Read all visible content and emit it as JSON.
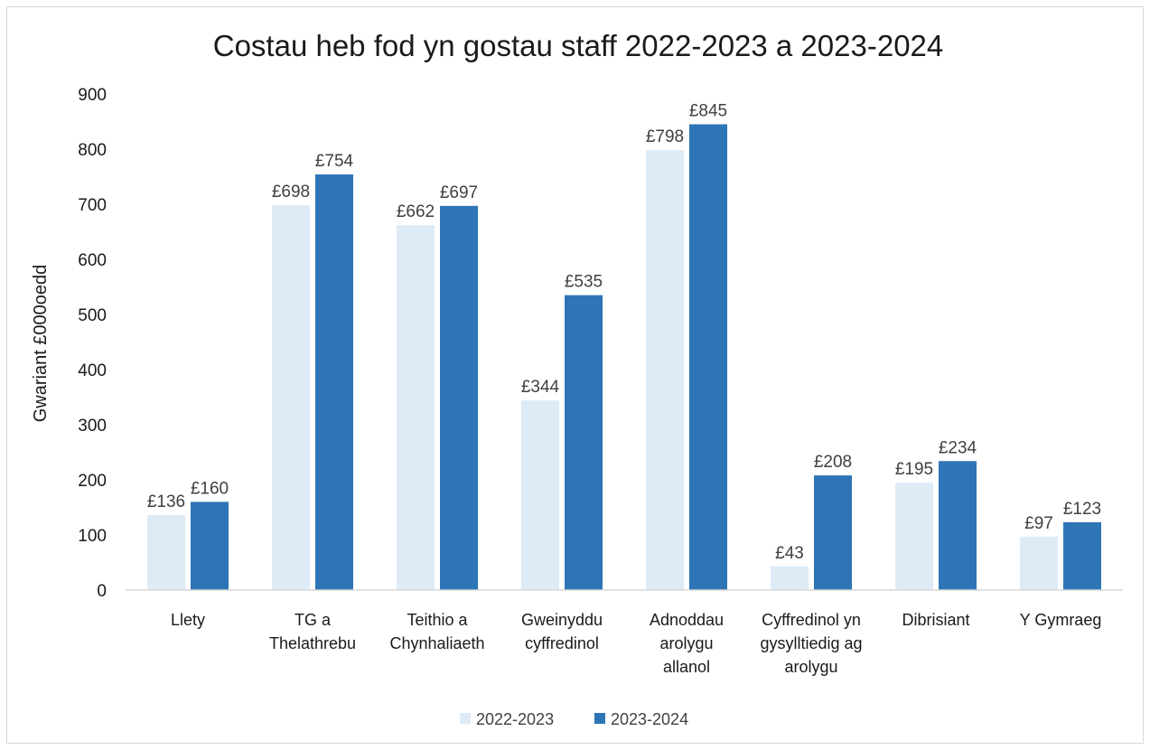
{
  "chart_data": {
    "type": "bar",
    "title": "Costau heb fod yn gostau staff 2022-2023 a 2023-2024",
    "xlabel": "",
    "ylabel": "Gwariant £000oedd",
    "ylim": [
      0,
      900
    ],
    "yticks": [
      0,
      100,
      200,
      300,
      400,
      500,
      600,
      700,
      800,
      900
    ],
    "categories": [
      [
        "Llety"
      ],
      [
        "TG a",
        "Thelathrebu"
      ],
      [
        "Teithio a",
        "Chynhaliaeth"
      ],
      [
        "Gweinyddu",
        "cyffredinol"
      ],
      [
        "Adnoddau",
        "arolygu",
        "allanol"
      ],
      [
        "Cyffredinol yn",
        "gysylltiedig ag",
        "arolygu"
      ],
      [
        "Dibrisiant"
      ],
      [
        "Y Gymraeg"
      ]
    ],
    "series": [
      {
        "name": "2022-2023",
        "color": "#ddebf7",
        "values": [
          136,
          698,
          662,
          344,
          798,
          43,
          195,
          97
        ],
        "labels": [
          "£136",
          "£698",
          "£662",
          "£344",
          "£798",
          "£43",
          "£195",
          "£97"
        ]
      },
      {
        "name": "2023-2024",
        "color": "#2e75b6",
        "values": [
          160,
          754,
          697,
          535,
          845,
          208,
          234,
          123
        ],
        "labels": [
          "£160",
          "£754",
          "£697",
          "£535",
          "£845",
          "£208",
          "£234",
          "£123"
        ]
      }
    ],
    "grid": false,
    "legend": "bottom"
  }
}
